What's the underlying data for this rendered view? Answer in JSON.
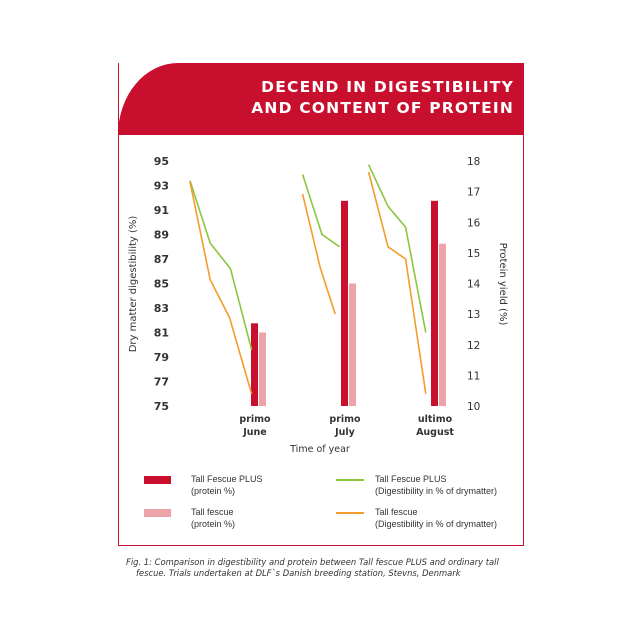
{
  "banner": {
    "line1": "DECEND IN DIGESTIBILITY",
    "line2": "AND CONTENT OF PROTEIN"
  },
  "caption": {
    "line1": "Fig. 1: Comparison in digestibility and protein between Tall fescue PLUS and ordinary tall",
    "line2": "fescue. Trials undertaken at DLF`s Danish breeding station, Stevns, Denmark"
  },
  "colors": {
    "brand_red": "#c8102e",
    "bar_plus": "#c8102e",
    "bar_fescue": "#eca4a8",
    "line_plus": "#8cc63f",
    "line_fescue": "#f39c2c"
  },
  "chart_data": {
    "type": "bar",
    "xlabel": "Time of year",
    "ylabel": "Dry matter digestibility (%)",
    "ylabel_right": "Protein yield (%)",
    "ylim": [
      75,
      95
    ],
    "yticks": [
      "95",
      "93",
      "91",
      "89",
      "87",
      "85",
      "83",
      "81",
      "79",
      "77",
      "75"
    ],
    "ylim_right": [
      10,
      18
    ],
    "yticks_right": [
      "18",
      "17",
      "16",
      "15",
      "14",
      "13",
      "12",
      "11",
      "10"
    ],
    "categories": [
      {
        "line1": "primo",
        "line2": "June"
      },
      {
        "line1": "primo",
        "line2": "July"
      },
      {
        "line1": "ultimo",
        "line2": "August"
      }
    ],
    "bar_series": [
      {
        "name_line1": "Tall Fescue PLUS",
        "name_line2": "(protein %)",
        "values": [
          12.7,
          16.7,
          16.7
        ]
      },
      {
        "name_line1": "Tall fescue",
        "name_line2": "(protein %)",
        "values": [
          12.4,
          14.0,
          15.3
        ]
      }
    ],
    "line_series": [
      {
        "name_line1": "Tall Fescue PLUS",
        "name_line2": "(Digestibility in % of drymatter)",
        "segments": [
          [
            [
              0,
              93.4
            ],
            [
              0.23,
              88.3
            ],
            [
              0.46,
              86.2
            ],
            [
              0.7,
              79.6
            ]
          ],
          [
            [
              1.28,
              93.9
            ],
            [
              1.5,
              89.0
            ],
            [
              1.7,
              88.0
            ]
          ],
          [
            [
              2.03,
              94.7
            ],
            [
              2.25,
              91.3
            ],
            [
              2.45,
              89.6
            ],
            [
              2.68,
              81.0
            ]
          ]
        ]
      },
      {
        "name_line1": "Tall fescue",
        "name_line2": "(Digestibility in % of drymatter)",
        "segments": [
          [
            [
              0,
              93.3
            ],
            [
              0.23,
              85.3
            ],
            [
              0.45,
              82.2
            ],
            [
              0.7,
              76.0
            ]
          ],
          [
            [
              1.28,
              92.3
            ],
            [
              1.48,
              86.3
            ],
            [
              1.65,
              82.5
            ]
          ],
          [
            [
              2.03,
              94.1
            ],
            [
              2.25,
              88.0
            ],
            [
              2.45,
              87.0
            ],
            [
              2.68,
              76.0
            ]
          ]
        ]
      }
    ],
    "grid": false,
    "legend_position": "bottom"
  }
}
